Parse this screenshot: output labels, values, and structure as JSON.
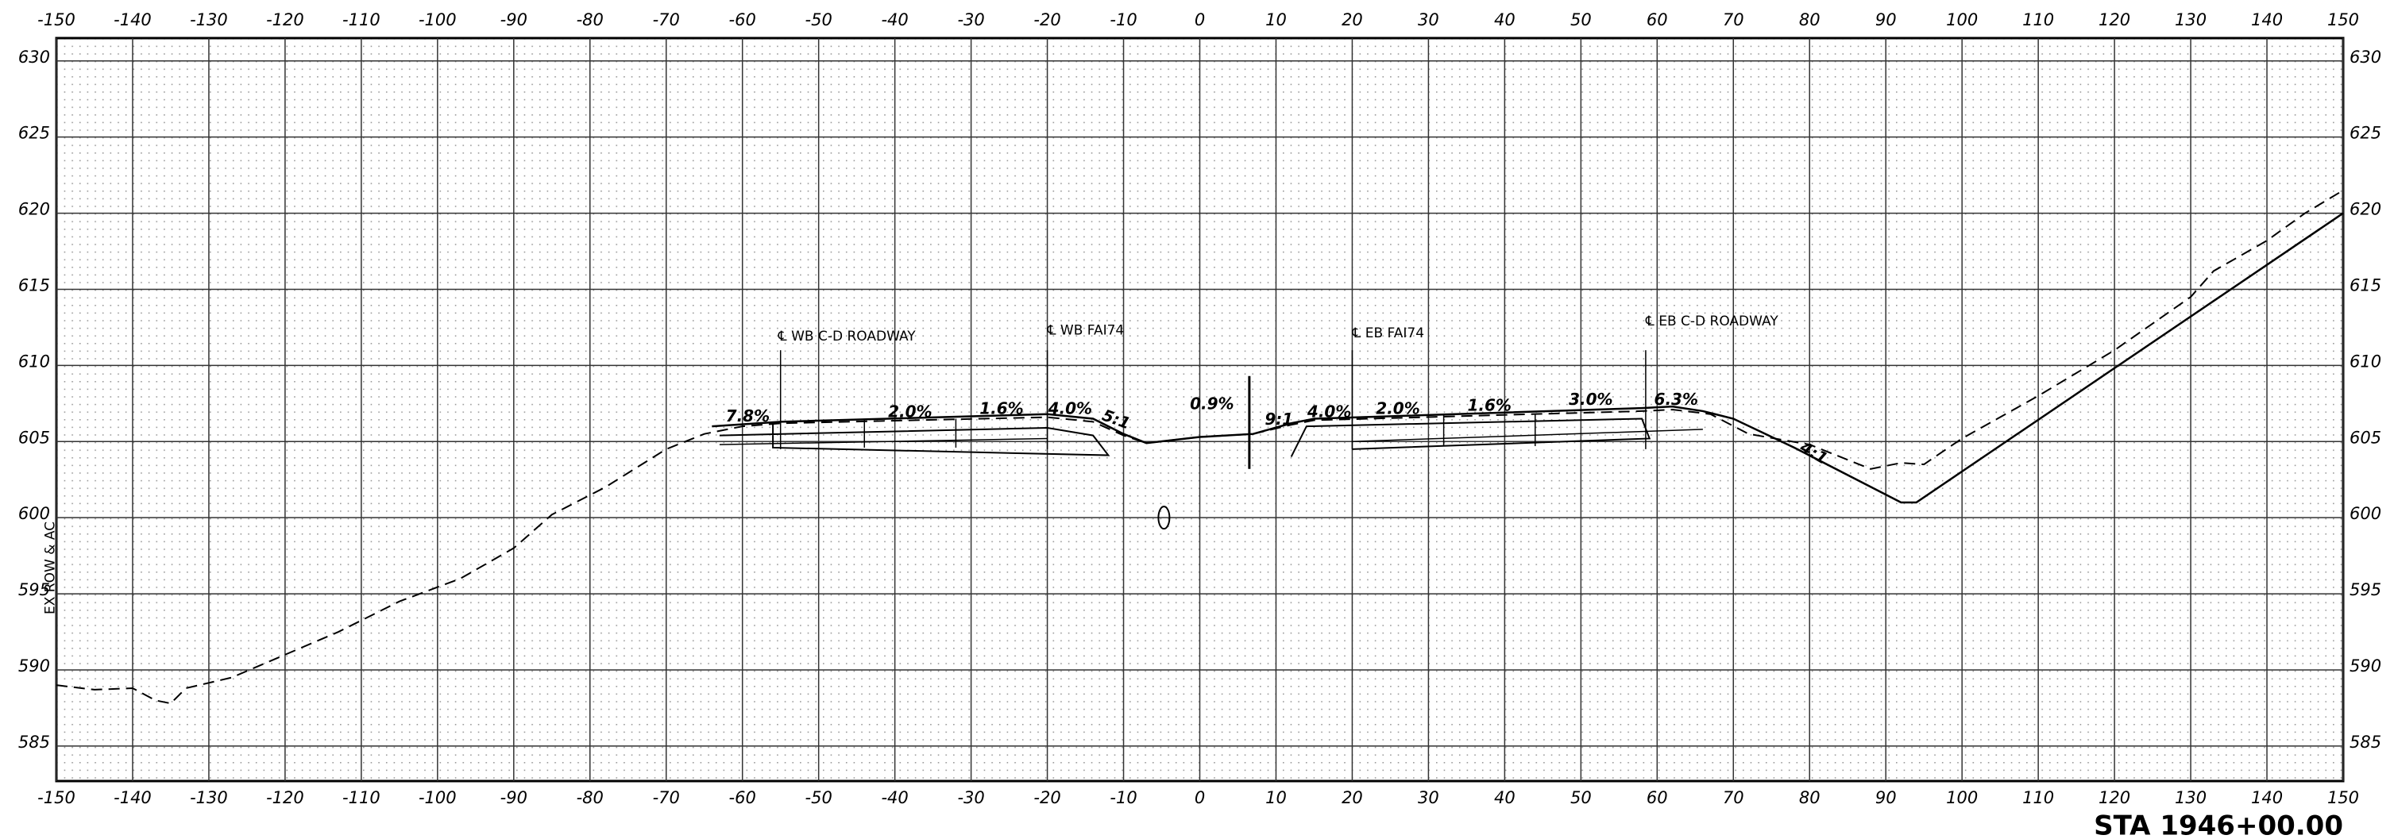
{
  "chart_data": {
    "type": "line",
    "station": "STA 1946+00.00",
    "xlim": [
      -150,
      150
    ],
    "ylim": [
      582.7,
      631.5
    ],
    "xticks": [
      -150,
      -140,
      -130,
      -120,
      -110,
      -100,
      -90,
      -80,
      -70,
      -60,
      -50,
      -40,
      -30,
      -20,
      -10,
      0,
      10,
      20,
      30,
      40,
      50,
      60,
      70,
      80,
      90,
      100,
      110,
      120,
      130,
      140,
      150
    ],
    "yticks": [
      585,
      590,
      595,
      600,
      605,
      610,
      615,
      620,
      625,
      630
    ],
    "grid": true,
    "series": [
      {
        "color": "#000000",
        "dash": true,
        "x": [
          -150,
          -145,
          -140,
          -137,
          -135,
          -133,
          -127,
          -120,
          -113,
          -105,
          -97,
          -90,
          -85,
          -78,
          -70,
          -65,
          -60,
          -55,
          -20,
          -14,
          -10,
          -7,
          0,
          7,
          12,
          15,
          58,
          62,
          67,
          72,
          80,
          88,
          92,
          95,
          100,
          110,
          120,
          130,
          133,
          140,
          145,
          150
        ],
        "values": [
          589,
          588.7,
          588.8,
          588,
          587.8,
          588.8,
          589.5,
          591,
          592.5,
          594.5,
          596,
          598,
          600.2,
          602,
          604.5,
          605.5,
          606,
          606.2,
          606.6,
          606.3,
          605.4,
          604.9,
          605.3,
          605.5,
          606.1,
          606.4,
          607,
          607.1,
          606.8,
          605.5,
          604.8,
          603.2,
          603.6,
          603.5,
          605.2,
          608,
          611,
          614.5,
          616.2,
          618.2,
          620,
          621.5
        ]
      },
      {
        "color": "#000000",
        "dash": false,
        "x": [
          -64,
          -55,
          -20,
          -14,
          -10,
          -7,
          0,
          7,
          12,
          15,
          58,
          62,
          66,
          70,
          78,
          92,
          94,
          150
        ],
        "values": [
          606,
          606.3,
          606.8,
          606.5,
          605.5,
          604.9,
          605.3,
          605.5,
          606.2,
          606.5,
          607.2,
          607.3,
          607,
          606.5,
          604.6,
          601,
          601,
          620
        ]
      }
    ],
    "annotations": [
      "7.8%",
      "2.0%",
      "1.6%",
      "4.0%",
      "5:1",
      "0.9%",
      "9:1",
      "4.0%",
      "2.0%",
      "1.6%",
      "3.0%",
      "6.3%",
      "4:1",
      "℄ WB C-D ROADWAY",
      "℄ WB FAI74",
      "℄ EB FAI74",
      "℄ EB C-D ROADWAY",
      "EX ROW & AC"
    ]
  }
}
